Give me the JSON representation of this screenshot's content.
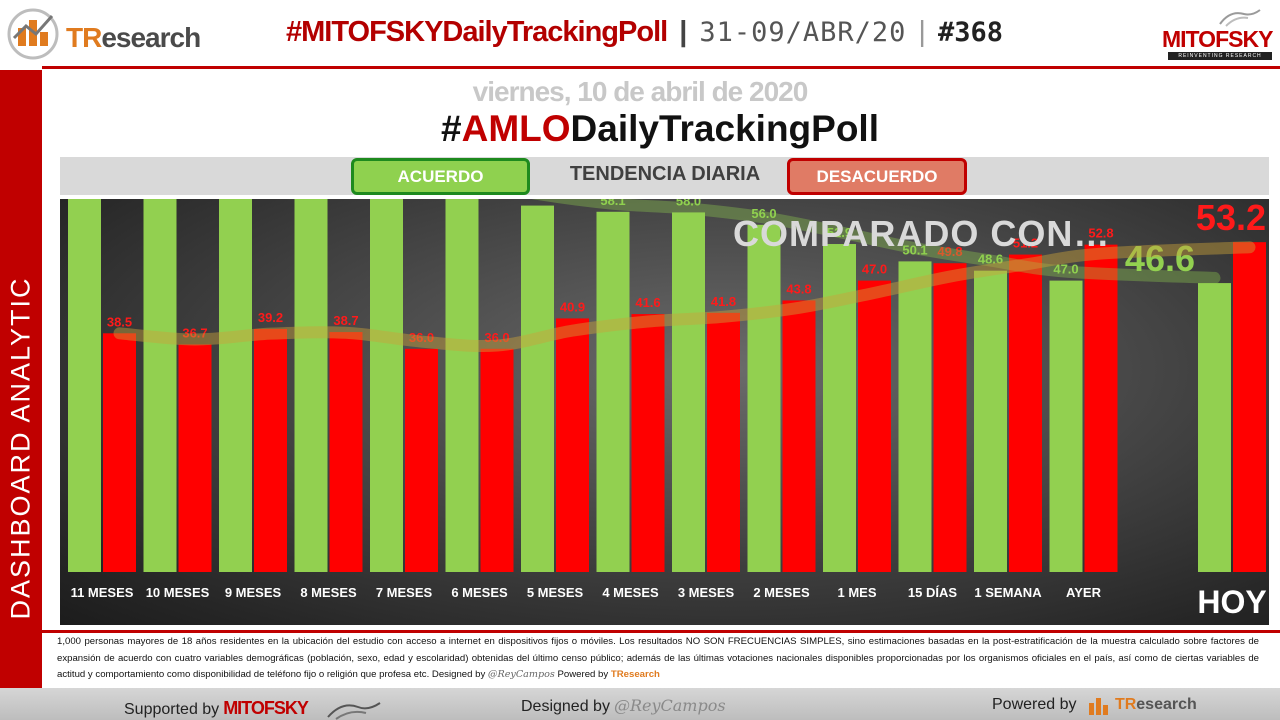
{
  "header": {
    "brand_text_prefix": "TR",
    "brand_text_suffix": "esearch",
    "headline_hashtag": "#MITOFSKYDailyTrackingPoll",
    "separator": "|",
    "headline_dates": "31-09/ABR/20",
    "separator2": "|",
    "headline_number": "#368",
    "partner_logo_text": "MITOFSKY",
    "partner_logo_tag": "REINVENTING RESEARCH"
  },
  "side_band": {
    "label": "DASHBOARD ANALYTIC"
  },
  "titles": {
    "date": "viernes, 10 de abril de 2020",
    "main_prefix": "#",
    "main_highlight": "AMLO",
    "main_suffix": "DailyTrackingPoll"
  },
  "selector": {
    "acuerdo_label": "ACUERDO",
    "trend_label": "TENDENCIA DIARIA",
    "desacuerdo_label": "DESACUERDO"
  },
  "colors": {
    "acuerdo": "#92d050",
    "desacuerdo": "#ff0000",
    "acuerdo_label": "#8fd14f",
    "desacuerdo_label": "#ff1a1a",
    "brand_red": "#c00000"
  },
  "chart_data": {
    "type": "bar",
    "compared_label": "COMPARADO CON…",
    "categories": [
      "11 MESES",
      "10 MESES",
      "9 MESES",
      "8 MESES",
      "7 MESES",
      "6 MESES",
      "5 MESES",
      "4 MESES",
      "3 MESES",
      "2 MESES",
      "1 MES",
      "15 DÍAS",
      "1 SEMANA",
      "AYER",
      "HOY"
    ],
    "series": [
      {
        "name": "ACUERDO",
        "values": [
          61.3,
          63.3,
          60.8,
          60.8,
          63.6,
          63.9,
          59.1,
          58.1,
          58.0,
          56.0,
          52.9,
          50.1,
          48.6,
          47.0,
          46.6
        ]
      },
      {
        "name": "DESACUERDO",
        "values": [
          38.5,
          36.7,
          39.2,
          38.7,
          36.0,
          36.0,
          40.9,
          41.6,
          41.8,
          43.8,
          47.0,
          49.8,
          51.2,
          52.8,
          53.2
        ]
      }
    ],
    "trend_lines": true,
    "grid": false,
    "legend": "top"
  },
  "footer": {
    "disclaimer": "1,000 personas mayores de 18 años residentes en la ubicación del estudio con acceso a internet en dispositivos fijos o móviles. Los resultados NO SON FRECUENCIAS SIMPLES, sino estimaciones basadas en la post-estratificación de la muestra calculado sobre factores de expansión de acuerdo con cuatro variables demográficas (población, sexo, edad y escolaridad) obtenidas del último censo público; además de las últimas votaciones nacionales disponibles proporcionadas por los organismos oficiales en el país, así como de ciertas variables de actitud y comportamiento como disponibilidad de teléfono fijo o religión que profesa etc. Designed by",
    "disclaimer_signature": "@ReyCampos",
    "disclaimer_powered": "Powered by",
    "disclaimer_brand": "TResearch",
    "supported_label": "Supported by",
    "supported_brand": "MITOFSKY",
    "designed_label": "Designed by",
    "designed_signature": "@ReyCampos",
    "powered_label": "Powered by",
    "powered_brand_prefix": "TR",
    "powered_brand_suffix": "esearch"
  }
}
